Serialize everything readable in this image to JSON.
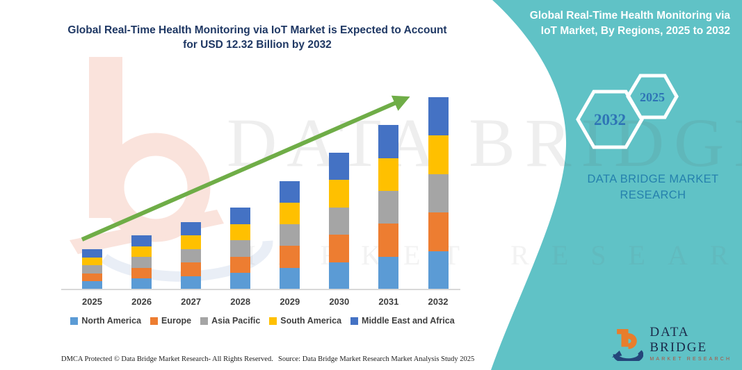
{
  "title": "Global Real-Time Health Monitoring via IoT Market is Expected to Account for USD 12.32 Billion by 2032",
  "side_panel": {
    "heading": "Global Real-Time Health Monitoring via IoT Market, By Regions, 2025 to 2032",
    "hexagons": [
      {
        "label": "2032"
      },
      {
        "label": "2025"
      }
    ],
    "brand_text": "DATA BRIDGE MARKET RESEARCH",
    "logo": {
      "name": "DATA BRIDGE",
      "sub": "MARKET RESEARCH"
    }
  },
  "watermark": {
    "text": "DATA BRIDGE",
    "sub": "MARKET RESEARCH"
  },
  "footer": {
    "left": "DMCA Protected © Data Bridge Market Research-  All Rights Reserved.",
    "source": "Source: Data Bridge Market Research  Market Analysis Study 2025"
  },
  "colors": {
    "teal": "#60C2C6",
    "arrow_green": "#6FAD47",
    "title_blue": "#1F3864",
    "hex_label_blue": "#2E74B5",
    "brand_blue": "#2581AD",
    "axis_gray": "#D8D8D8"
  },
  "chart_data": {
    "type": "bar",
    "stacked": true,
    "title": "Global Real-Time Health Monitoring via IoT Market is Expected to Account for USD 12.32 Billion by 2032",
    "unit": "USD Billion",
    "categories": [
      "2025",
      "2026",
      "2027",
      "2028",
      "2029",
      "2030",
      "2031",
      "2032"
    ],
    "series": [
      {
        "name": "North America",
        "color": "#5B9BD5",
        "values": [
          0.516,
          0.694,
          0.866,
          1.048,
          1.392,
          1.756,
          2.106,
          2.464
        ]
      },
      {
        "name": "Europe",
        "color": "#ED7D31",
        "values": [
          0.516,
          0.694,
          0.866,
          1.048,
          1.392,
          1.756,
          2.106,
          2.464
        ]
      },
      {
        "name": "Asia Pacific",
        "color": "#A5A5A5",
        "values": [
          0.516,
          0.694,
          0.866,
          1.048,
          1.392,
          1.756,
          2.106,
          2.464
        ]
      },
      {
        "name": "South America",
        "color": "#FFC000",
        "values": [
          0.516,
          0.694,
          0.866,
          1.048,
          1.392,
          1.756,
          2.106,
          2.464
        ]
      },
      {
        "name": "Middle East and Africa",
        "color": "#4472C4",
        "values": [
          0.516,
          0.694,
          0.866,
          1.048,
          1.392,
          1.756,
          2.106,
          2.464
        ]
      }
    ],
    "totals": [
      2.58,
      3.47,
      4.33,
      5.24,
      6.96,
      8.78,
      10.53,
      12.32
    ],
    "ylim": [
      0,
      12.32
    ],
    "xlabel": "",
    "ylabel": "",
    "grid": false,
    "legend_position": "bottom",
    "trend_arrow": true
  }
}
